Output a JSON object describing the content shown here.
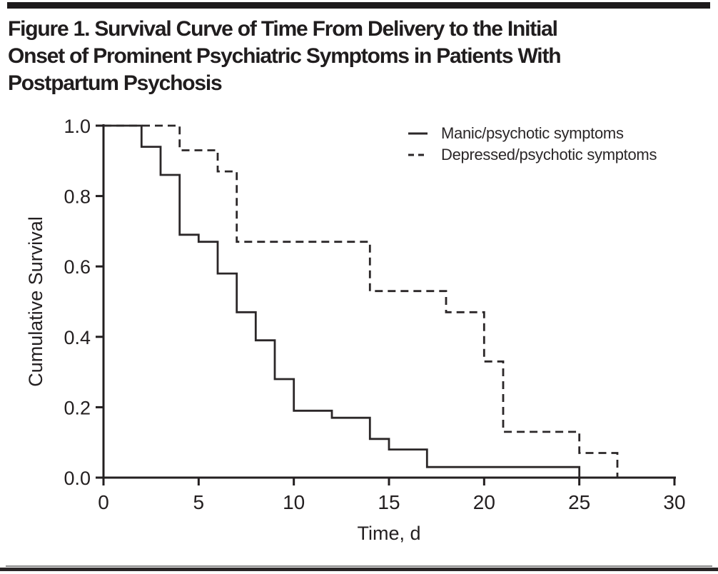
{
  "figure": {
    "title_lines": [
      "Figure 1. Survival Curve of Time From Delivery to the Initial",
      "Onset of Prominent Psychiatric Symptoms in Patients With",
      "Postpartum Psychosis"
    ]
  },
  "colors": {
    "ink": "#231f20",
    "curve": "#2b2728",
    "top_bar": "#1d1a1b",
    "bottom_rule_gray": "#8a8a8a",
    "background": "#ffffff"
  },
  "chart_data": {
    "type": "line",
    "subtype": "kaplan-meier-step-survival",
    "title": "",
    "xlabel": "Time, d",
    "ylabel": "Cumulative Survival",
    "xlim": [
      0,
      30
    ],
    "ylim": [
      0,
      1
    ],
    "x_ticks": [
      0,
      5,
      10,
      15,
      20,
      25,
      30
    ],
    "y_ticks": [
      0.0,
      0.2,
      0.4,
      0.6,
      0.8,
      1.0
    ],
    "y_tick_labels": [
      "0.0",
      "0.2",
      "0.4",
      "0.6",
      "0.8",
      "1.0"
    ],
    "grid": false,
    "legend_position": "top-right-inside",
    "series": [
      {
        "name": "Manic/psychotic symptoms",
        "line_style": "solid",
        "steps_day_survival": [
          [
            0,
            1.0
          ],
          [
            2,
            0.94
          ],
          [
            3,
            0.86
          ],
          [
            4,
            0.69
          ],
          [
            5,
            0.67
          ],
          [
            6,
            0.58
          ],
          [
            7,
            0.47
          ],
          [
            8,
            0.39
          ],
          [
            9,
            0.28
          ],
          [
            10,
            0.19
          ],
          [
            12,
            0.17
          ],
          [
            14,
            0.11
          ],
          [
            15,
            0.08
          ],
          [
            17,
            0.03
          ],
          [
            25,
            0.0
          ]
        ]
      },
      {
        "name": "Depressed/psychotic symptoms",
        "line_style": "dashed",
        "steps_day_survival": [
          [
            0,
            1.0
          ],
          [
            4,
            0.93
          ],
          [
            6,
            0.87
          ],
          [
            7,
            0.67
          ],
          [
            14,
            0.53
          ],
          [
            18,
            0.47
          ],
          [
            20,
            0.33
          ],
          [
            21,
            0.13
          ],
          [
            25,
            0.07
          ],
          [
            27,
            0.0
          ]
        ]
      }
    ]
  }
}
